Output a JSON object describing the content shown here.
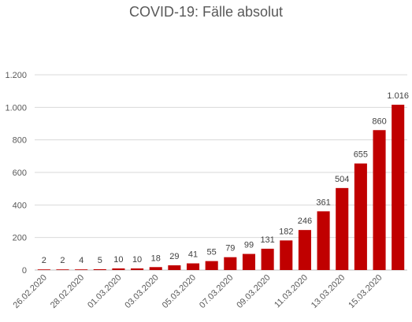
{
  "chart_data": {
    "type": "bar",
    "title": "COVID-19: Fälle absolut",
    "xlabel": "",
    "ylabel": "",
    "ylim": [
      0,
      1200
    ],
    "yticks": [
      0,
      200,
      400,
      600,
      800,
      1000,
      1200
    ],
    "ytick_labels": [
      "0",
      "200",
      "400",
      "600",
      "800",
      "1.000",
      "1.200"
    ],
    "grid": true,
    "legend": "none",
    "bar_color": "#C00000",
    "categories": [
      "26.02.2020",
      "27.02.2020",
      "28.02.2020",
      "29.02.2020",
      "01.03.2020",
      "02.03.2020",
      "03.03.2020",
      "04.03.2020",
      "05.03.2020",
      "06.03.2020",
      "07.03.2020",
      "08.03.2020",
      "09.03.2020",
      "10.03.2020",
      "11.03.2020",
      "12.03.2020",
      "13.03.2020",
      "14.03.2020",
      "15.03.2020",
      "16.03.2020"
    ],
    "shown_xtick_labels": [
      "26.02.2020",
      "28.02.2020",
      "01.03.2020",
      "03.03.2020",
      "05.03.2020",
      "07.03.2020",
      "09.03.2020",
      "11.03.2020",
      "13.03.2020",
      "15.03.2020"
    ],
    "values": [
      2,
      2,
      4,
      5,
      10,
      10,
      18,
      29,
      41,
      55,
      79,
      99,
      131,
      182,
      246,
      361,
      504,
      655,
      860,
      1016
    ],
    "value_labels": [
      "2",
      "2",
      "4",
      "5",
      "10",
      "10",
      "18",
      "29",
      "41",
      "55",
      "79",
      "99",
      "131",
      "182",
      "246",
      "361",
      "504",
      "655",
      "860",
      "1.016"
    ]
  }
}
